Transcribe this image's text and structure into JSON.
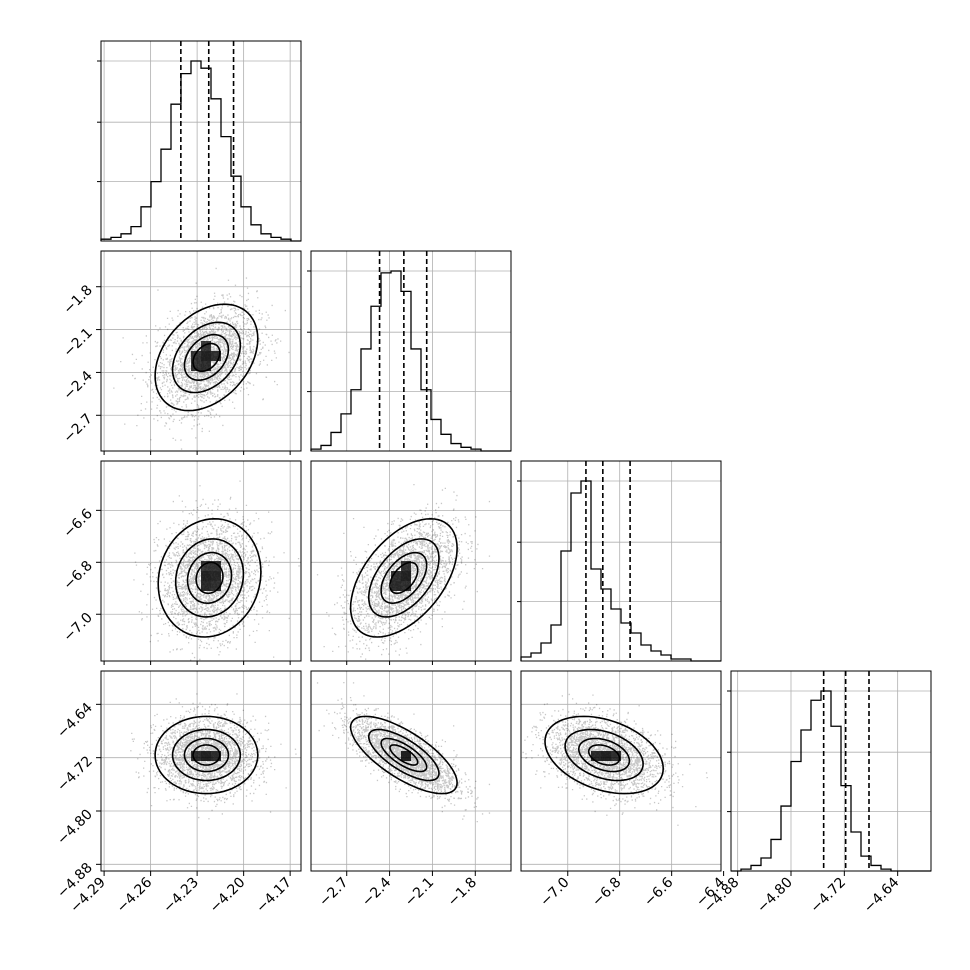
{
  "chart_data": {
    "type": "corner",
    "parameters": [
      {
        "range": [
          -4.292,
          -4.163
        ],
        "ticks": [
          -4.29,
          -4.26,
          -4.23,
          -4.2,
          -4.17
        ],
        "tick_labels": [
          "−4.29",
          "−4.26",
          "−4.23",
          "−4.20",
          "−4.17"
        ],
        "quantiles": [
          -4.2405,
          -4.2225,
          -4.2065
        ],
        "histogram": [
          0.01,
          0.02,
          0.04,
          0.08,
          0.19,
          0.33,
          0.51,
          0.76,
          0.93,
          1.0,
          0.96,
          0.79,
          0.58,
          0.36,
          0.19,
          0.09,
          0.04,
          0.02,
          0.01,
          0.0
        ]
      },
      {
        "range": [
          -2.95,
          -1.55
        ],
        "ticks": [
          -2.7,
          -2.4,
          -2.1,
          -1.8
        ],
        "tick_labels": [
          "−2.7",
          "−2.4",
          "−2.1",
          "−1.8"
        ],
        "quantiles": [
          -2.47,
          -2.3,
          -2.14
        ],
        "histogram": [
          0.01,
          0.03,
          0.1,
          0.2,
          0.33,
          0.55,
          0.78,
          0.96,
          0.97,
          0.86,
          0.55,
          0.33,
          0.17,
          0.09,
          0.04,
          0.02,
          0.01,
          0.0,
          0.0,
          0.0
        ]
      },
      {
        "range": [
          -7.18,
          -6.41
        ],
        "ticks": [
          -7.0,
          -6.8,
          -6.6,
          -6.4
        ],
        "tick_labels": [
          "−7.0",
          "−6.8",
          "−6.6",
          "−6.4"
        ],
        "quantiles": [
          -6.93,
          -6.865,
          -6.76
        ],
        "histogram": [
          0.02,
          0.04,
          0.09,
          0.18,
          0.55,
          0.84,
          0.9,
          0.46,
          0.36,
          0.26,
          0.19,
          0.14,
          0.08,
          0.05,
          0.03,
          0.01,
          0.01,
          0.0,
          0.0,
          0.0
        ]
      },
      {
        "range": [
          -4.89,
          -4.59
        ],
        "ticks": [
          -4.88,
          -4.8,
          -4.72,
          -4.64
        ],
        "tick_labels": [
          "−4.88",
          "−4.80",
          "−4.72",
          "−4.64"
        ],
        "quantiles": [
          -4.751,
          -4.718,
          -4.683
        ],
        "histogram": [
          0.0,
          0.01,
          0.03,
          0.07,
          0.17,
          0.35,
          0.59,
          0.76,
          0.92,
          0.97,
          0.78,
          0.46,
          0.21,
          0.08,
          0.03,
          0.01,
          0.0,
          0.0,
          0.0,
          0.0
        ]
      }
    ],
    "pairs": [
      {
        "row": 1,
        "col": 0,
        "mean": [
          -4.224,
          -2.295
        ],
        "sd": [
          0.016,
          0.18
        ],
        "corr": 0.35
      },
      {
        "row": 2,
        "col": 0,
        "mean": [
          -4.222,
          -6.86
        ],
        "sd": [
          0.016,
          0.11
        ],
        "corr": 0.1
      },
      {
        "row": 2,
        "col": 1,
        "mean": [
          -2.3,
          -6.86
        ],
        "sd": [
          0.18,
          0.11
        ],
        "corr": 0.5
      },
      {
        "row": 3,
        "col": 0,
        "mean": [
          -4.224,
          -4.716
        ],
        "sd": [
          0.016,
          0.028
        ],
        "corr": 0.0
      },
      {
        "row": 3,
        "col": 1,
        "mean": [
          -2.3,
          -4.716
        ],
        "sd": [
          0.18,
          0.028
        ],
        "corr": -0.72
      },
      {
        "row": 3,
        "col": 2,
        "mean": [
          -6.86,
          -4.716
        ],
        "sd": [
          0.11,
          0.028
        ],
        "corr": -0.35
      }
    ],
    "contour_levels_sigma": [
      0.5,
      1.0,
      1.5,
      2.0
    ],
    "grid": true,
    "colors": {
      "line": "#000000",
      "grid": "#b0b0b0",
      "points": "#000000",
      "density": "#000000"
    }
  }
}
